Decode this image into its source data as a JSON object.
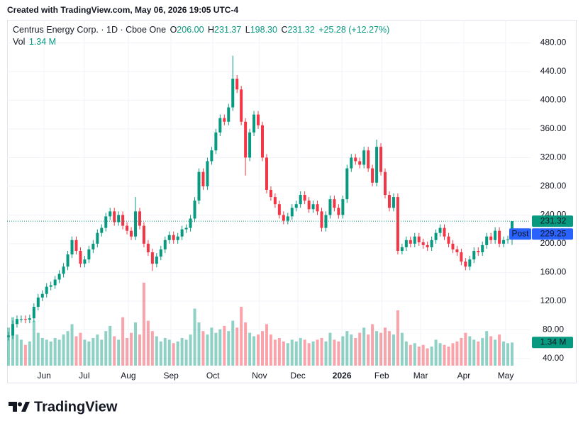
{
  "chart_data": {
    "type": "candlestick",
    "created": "Created with TradingView.com, May 06, 2026 19:05 UTC-4",
    "header": {
      "symbol": "Centrus Energy Corp. · 1D · Cboe One",
      "open_label": "O",
      "high_label": "H",
      "low_label": "L",
      "close_label": "C",
      "volume_label": "Vol"
    },
    "value_labels": {
      "open": "206.00",
      "high": "231.37",
      "low": "198.30",
      "close": "231.32",
      "change": "+25.28 (+12.27%)",
      "volume": "1.34 M",
      "post": "229.25"
    },
    "post_label": "Post",
    "post_price": 229.25,
    "brand": "TradingView",
    "up_color": "#089981",
    "down_color": "#f23645",
    "volume_up_color": "rgba(8,153,129,0.45)",
    "volume_down_color": "rgba(242,54,69,0.45)",
    "post_color": "#2962ff",
    "grid": true,
    "open": [
      70,
      72,
      88,
      95,
      95,
      94,
      96,
      112,
      125,
      130,
      140,
      142,
      150,
      158,
      168,
      185,
      205,
      190,
      172,
      178,
      192,
      200,
      215,
      222,
      238,
      245,
      230,
      240,
      225,
      218,
      210,
      245,
      225,
      200,
      188,
      172,
      182,
      192,
      205,
      212,
      205,
      210,
      220,
      222,
      235,
      260,
      300,
      280,
      315,
      330,
      355,
      375,
      370,
      390,
      430,
      415,
      370,
      320,
      355,
      380,
      365,
      320,
      275,
      265,
      255,
      240,
      232,
      238,
      250,
      255,
      268,
      260,
      248,
      255,
      245,
      222,
      240,
      262,
      250,
      240,
      262,
      305,
      320,
      315,
      310,
      330,
      305,
      285,
      335,
      300,
      268,
      250,
      265,
      190,
      195,
      205,
      200,
      210,
      202,
      198,
      195,
      205,
      215,
      222,
      210,
      200,
      192,
      188,
      175,
      168,
      178,
      190,
      188,
      198,
      210,
      205,
      218,
      200,
      205,
      206
    ],
    "high": [
      77,
      93,
      100,
      100,
      100,
      101,
      117,
      130,
      135,
      145,
      147,
      155,
      163,
      173,
      190,
      210,
      210,
      195,
      183,
      197,
      205,
      220,
      227,
      243,
      250,
      250,
      245,
      245,
      230,
      223,
      265,
      250,
      230,
      205,
      193,
      187,
      197,
      210,
      217,
      217,
      215,
      225,
      227,
      240,
      265,
      305,
      305,
      320,
      335,
      360,
      380,
      380,
      395,
      462,
      435,
      420,
      375,
      360,
      385,
      385,
      370,
      325,
      280,
      270,
      260,
      245,
      243,
      255,
      260,
      273,
      273,
      265,
      260,
      260,
      250,
      245,
      267,
      267,
      255,
      267,
      310,
      325,
      325,
      320,
      335,
      335,
      310,
      345,
      340,
      305,
      273,
      270,
      270,
      200,
      210,
      210,
      215,
      215,
      207,
      203,
      210,
      220,
      227,
      227,
      215,
      205,
      197,
      193,
      180,
      183,
      195,
      195,
      203,
      215,
      215,
      223,
      223,
      210,
      211,
      231.37
    ],
    "low": [
      65,
      67,
      83,
      90,
      89,
      89,
      91,
      107,
      120,
      125,
      135,
      137,
      145,
      153,
      163,
      180,
      185,
      167,
      167,
      173,
      187,
      195,
      210,
      217,
      233,
      225,
      225,
      220,
      213,
      205,
      205,
      220,
      195,
      183,
      162,
      167,
      177,
      187,
      200,
      200,
      200,
      205,
      215,
      217,
      230,
      255,
      275,
      275,
      310,
      325,
      350,
      365,
      365,
      385,
      410,
      365,
      295,
      315,
      350,
      360,
      315,
      270,
      260,
      250,
      235,
      227,
      227,
      233,
      245,
      250,
      255,
      243,
      243,
      240,
      217,
      217,
      235,
      245,
      235,
      235,
      257,
      300,
      310,
      305,
      305,
      300,
      280,
      280,
      295,
      263,
      245,
      245,
      185,
      185,
      190,
      195,
      195,
      197,
      193,
      190,
      190,
      200,
      210,
      205,
      195,
      187,
      183,
      170,
      163,
      163,
      173,
      183,
      183,
      193,
      200,
      200,
      195,
      195,
      200,
      198.3
    ],
    "close": [
      72,
      88,
      95,
      95,
      94,
      96,
      112,
      125,
      130,
      140,
      142,
      150,
      158,
      168,
      185,
      205,
      190,
      172,
      178,
      192,
      200,
      215,
      222,
      238,
      245,
      230,
      240,
      225,
      218,
      210,
      245,
      225,
      200,
      188,
      172,
      182,
      192,
      205,
      212,
      205,
      210,
      220,
      222,
      235,
      260,
      300,
      280,
      315,
      330,
      355,
      375,
      370,
      390,
      430,
      415,
      370,
      320,
      355,
      380,
      365,
      320,
      275,
      265,
      255,
      240,
      232,
      238,
      250,
      255,
      268,
      260,
      248,
      255,
      245,
      222,
      240,
      262,
      250,
      240,
      262,
      305,
      320,
      315,
      310,
      330,
      305,
      285,
      335,
      300,
      268,
      250,
      265,
      190,
      195,
      205,
      200,
      210,
      202,
      198,
      195,
      205,
      215,
      222,
      210,
      200,
      192,
      188,
      175,
      168,
      178,
      190,
      188,
      198,
      210,
      205,
      218,
      200,
      205,
      206,
      231.32
    ],
    "volume": [
      2.2,
      2.8,
      1.8,
      1.5,
      1.2,
      1.4,
      2.6,
      1.9,
      1.6,
      1.5,
      1.4,
      1.6,
      1.5,
      1.8,
      2.0,
      2.4,
      1.7,
      1.9,
      1.5,
      1.4,
      1.6,
      1.8,
      1.5,
      2.0,
      2.3,
      1.7,
      1.5,
      2.8,
      1.6,
      1.9,
      2.5,
      1.8,
      4.8,
      2.6,
      2.0,
      1.7,
      1.4,
      1.6,
      1.5,
      1.3,
      1.4,
      1.6,
      1.5,
      1.8,
      3.3,
      2.5,
      2.0,
      1.8,
      2.2,
      1.9,
      2.1,
      2.3,
      2.0,
      2.6,
      2.2,
      3.4,
      2.5,
      1.9,
      1.7,
      1.8,
      2.0,
      2.4,
      1.8,
      1.5,
      1.6,
      1.4,
      1.3,
      1.5,
      1.4,
      1.6,
      1.5,
      1.3,
      1.4,
      1.5,
      1.6,
      1.4,
      1.9,
      1.5,
      1.4,
      1.7,
      2.0,
      1.8,
      1.6,
      1.9,
      2.2,
      1.8,
      2.4,
      2.0,
      1.9,
      2.2,
      2.0,
      1.8,
      3.2,
      1.9,
      1.4,
      1.2,
      1.3,
      1.1,
      1.2,
      1.0,
      1.1,
      1.5,
      1.3,
      1.2,
      1.1,
      1.3,
      1.4,
      1.6,
      1.9,
      1.7,
      1.5,
      1.4,
      1.6,
      2.0,
      1.7,
      1.5,
      1.8,
      1.4,
      1.3,
      1.34
    ],
    "xlim": [
      -0.34,
      123.36
    ],
    "ylim": [
      30,
      512
    ],
    "vlim": [
      0,
      20
    ],
    "yticks": [
      {
        "value": 40,
        "label": "40.00"
      },
      {
        "value": 80,
        "label": "80.00"
      },
      {
        "value": 120,
        "label": "120.00"
      },
      {
        "value": 160,
        "label": "160.00"
      },
      {
        "value": 200,
        "label": "200.00"
      },
      {
        "value": 240,
        "label": "240.00"
      },
      {
        "value": 280,
        "label": "280.00"
      },
      {
        "value": 320,
        "label": "320.00"
      },
      {
        "value": 360,
        "label": "360.00"
      },
      {
        "value": 400,
        "label": "400.00"
      },
      {
        "value": 440,
        "label": "440.00"
      },
      {
        "value": 480,
        "label": "480.00"
      }
    ],
    "xticks": [
      {
        "value": 8.4,
        "label": "Jun"
      },
      {
        "value": 17.9,
        "label": "Jul"
      },
      {
        "value": 28.3,
        "label": "Aug"
      },
      {
        "value": 38.4,
        "label": "Sep"
      },
      {
        "value": 48.3,
        "label": "Oct"
      },
      {
        "value": 59.3,
        "label": "Nov"
      },
      {
        "value": 68.4,
        "label": "Dec"
      },
      {
        "value": 78.8,
        "label": "2026",
        "bold": true
      },
      {
        "value": 88.2,
        "label": "Feb"
      },
      {
        "value": 97.4,
        "label": "Mar"
      },
      {
        "value": 107.6,
        "label": "Apr"
      },
      {
        "value": 117.5,
        "label": "May"
      }
    ]
  }
}
